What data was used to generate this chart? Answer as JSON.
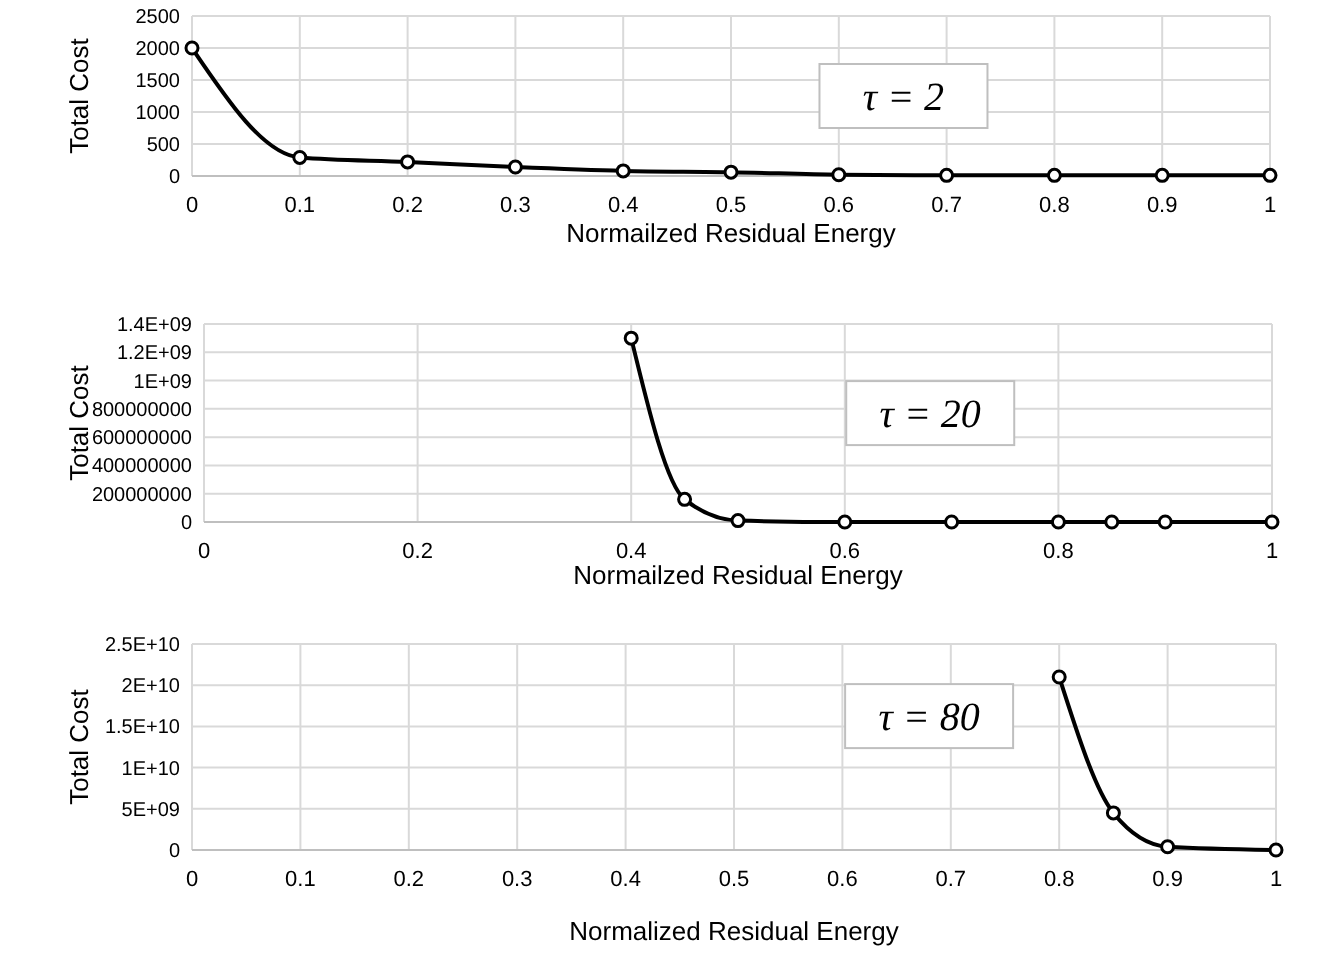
{
  "chart_data": [
    {
      "type": "line",
      "xlabel": "Normailzed Residual Energy",
      "ylabel": "Total Cost",
      "annotations": [
        "τ = 2"
      ],
      "grid": true,
      "marker": "circle",
      "xlim": [
        0,
        1
      ],
      "xticks": [
        0,
        0.1,
        0.2,
        0.3,
        0.4,
        0.5,
        0.6,
        0.7,
        0.8,
        0.9,
        1
      ],
      "ylim": [
        0,
        2500
      ],
      "yticks": [
        0,
        500,
        1000,
        1500,
        2000,
        2500
      ],
      "series": [
        {
          "color": "#000000",
          "x": [
            0,
            0.1,
            0.2,
            0.3,
            0.4,
            0.5,
            0.6,
            0.7,
            0.8,
            0.9,
            1
          ],
          "values": [
            2000,
            290,
            220,
            140,
            80,
            60,
            20,
            10,
            10,
            10,
            10
          ]
        }
      ]
    },
    {
      "type": "line",
      "xlabel": "Normailzed Residual Energy",
      "ylabel": "Total Cost",
      "annotations": [
        "τ = 20"
      ],
      "grid": true,
      "marker": "circle",
      "xlim": [
        0,
        1
      ],
      "xticks": [
        0,
        0.2,
        0.4,
        0.6,
        0.8,
        1
      ],
      "ylim": [
        0,
        1400000000
      ],
      "yticks": [
        0,
        200000000,
        400000000,
        600000000,
        800000000,
        {
          "value": 1000000000,
          "label": "1E+09"
        },
        {
          "value": 1200000000,
          "label": "1.2E+09"
        },
        {
          "value": 1400000000,
          "label": "1.4E+09"
        }
      ],
      "series": [
        {
          "color": "#000000",
          "x": [
            0.4,
            0.45,
            0.5,
            0.6,
            0.7,
            0.8,
            0.85,
            0.9,
            1
          ],
          "values": [
            1300000000,
            160000000,
            10000000,
            0,
            0,
            0,
            0,
            0,
            0
          ]
        }
      ]
    },
    {
      "type": "line",
      "xlabel": "Normalized Residual Energy",
      "ylabel": "Total Cost",
      "annotations": [
        "τ = 80"
      ],
      "grid": true,
      "marker": "circle",
      "xlim": [
        0,
        1
      ],
      "xticks": [
        0,
        0.1,
        0.2,
        0.3,
        0.4,
        0.5,
        0.6,
        0.7,
        0.8,
        0.9,
        1
      ],
      "ylim": [
        0,
        25000000000
      ],
      "yticks": [
        0,
        {
          "value": 5000000000,
          "label": "5E+09"
        },
        {
          "value": 10000000000,
          "label": "1E+10"
        },
        {
          "value": 15000000000,
          "label": "1.5E+10"
        },
        {
          "value": 20000000000,
          "label": "2E+10"
        },
        {
          "value": 25000000000,
          "label": "2.5E+10"
        }
      ],
      "series": [
        {
          "color": "#000000",
          "x": [
            0.8,
            0.85,
            0.9,
            1
          ],
          "values": [
            21000000000,
            4500000000,
            400000000,
            0
          ]
        }
      ]
    }
  ]
}
